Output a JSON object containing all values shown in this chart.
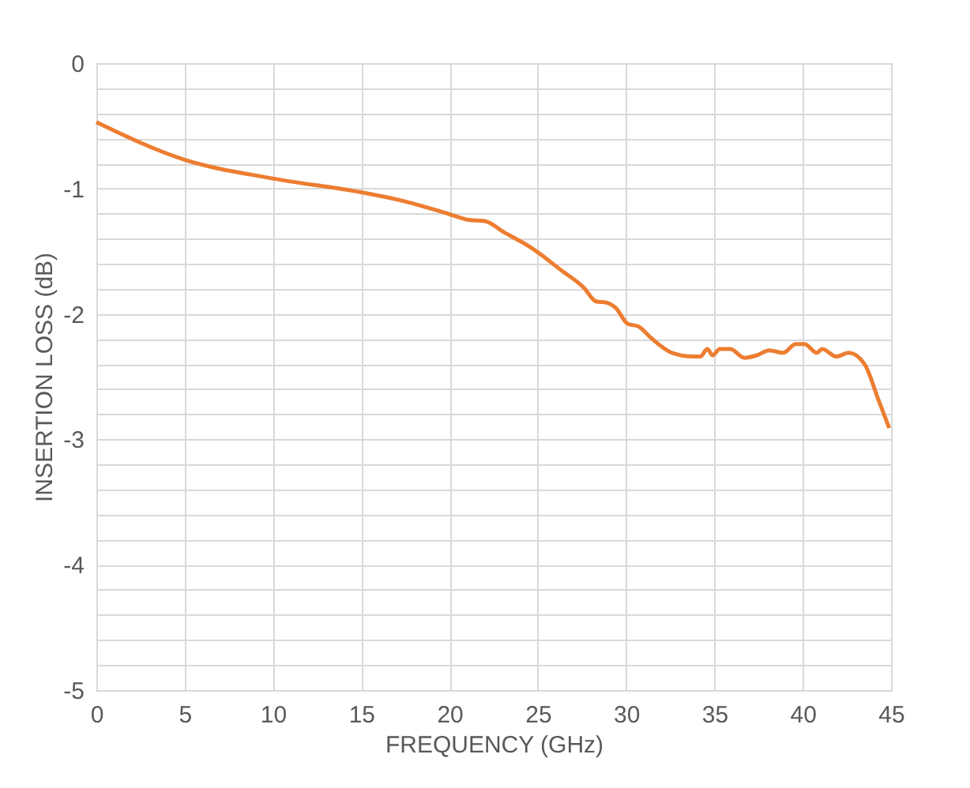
{
  "chart_data": {
    "type": "line",
    "xlabel": "FREQUENCY (GHz)",
    "ylabel": "INSERTION LOSS (dB)",
    "x": [
      0,
      5,
      10,
      15,
      17.4,
      19.9,
      21.1,
      22,
      23.1,
      24.6,
      26.4,
      27.6,
      28.3,
      28.9,
      29.4,
      30.1,
      30.7,
      31.4,
      32.6,
      33.8,
      34.2,
      34.6,
      34.9,
      35.3,
      35.9,
      36.7,
      37.4,
      38.1,
      38.9,
      39.6,
      40.1,
      40.8,
      41.1,
      41.9,
      42.6,
      43.5,
      44.3,
      44.9
    ],
    "series": [
      {
        "color": "#ed7d31",
        "values": [
          -0.47,
          -0.77,
          -0.92,
          -1.03,
          -1.1,
          -1.2,
          -1.25,
          -1.26,
          -1.35,
          -1.47,
          -1.66,
          -1.79,
          -1.9,
          -1.91,
          -1.95,
          -2.08,
          -2.1,
          -2.19,
          -2.31,
          -2.34,
          -2.34,
          -2.28,
          -2.33,
          -2.28,
          -2.28,
          -2.35,
          -2.33,
          -2.29,
          -2.31,
          -2.24,
          -2.24,
          -2.31,
          -2.28,
          -2.34,
          -2.31,
          -2.4,
          -2.69,
          -2.91
        ]
      }
    ],
    "xlim": [
      0,
      45
    ],
    "xticks": [
      0,
      5,
      10,
      15,
      20,
      25,
      30,
      35,
      40,
      45
    ],
    "ylim": [
      -5,
      0
    ],
    "yticks": [
      -5,
      {
        "value": -4.8,
        "label": null
      },
      {
        "value": -4.6,
        "label": null
      },
      {
        "value": -4.4,
        "label": null
      },
      {
        "value": -4.2,
        "label": null
      },
      -4,
      {
        "value": -3.8,
        "label": null
      },
      {
        "value": -3.6,
        "label": null
      },
      {
        "value": -3.4,
        "label": null
      },
      {
        "value": -3.2,
        "label": null
      },
      -3,
      {
        "value": -2.8,
        "label": null
      },
      {
        "value": -2.6,
        "label": null
      },
      {
        "value": -2.4,
        "label": null
      },
      {
        "value": -2.2,
        "label": null
      },
      -2,
      {
        "value": -1.8,
        "label": null
      },
      {
        "value": -1.6,
        "label": null
      },
      {
        "value": -1.4,
        "label": null
      },
      {
        "value": -1.2,
        "label": null
      },
      -1,
      {
        "value": -0.8,
        "label": null
      },
      {
        "value": -0.6,
        "label": null
      },
      {
        "value": -0.4,
        "label": null
      },
      {
        "value": -0.2,
        "label": null
      },
      0
    ],
    "grid": true,
    "line_style": "solid"
  }
}
